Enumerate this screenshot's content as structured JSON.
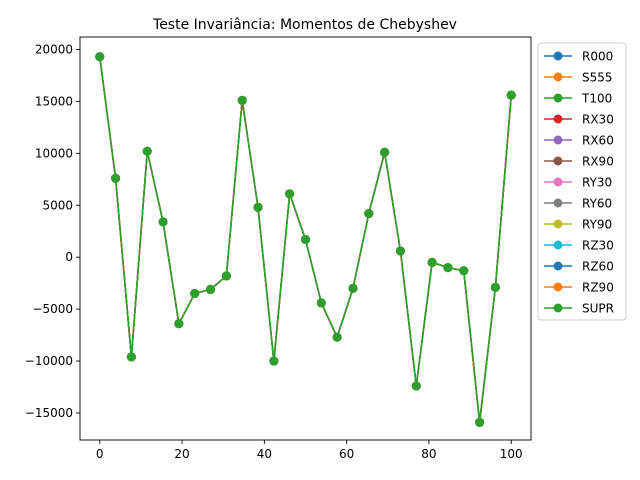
{
  "chart_data": {
    "type": "line",
    "title": "Teste Invariância: Momentos de Chebyshev",
    "xlabel": "",
    "ylabel": "",
    "xlim": [
      -4.8,
      104.8
    ],
    "ylim": [
      -17600,
      21200
    ],
    "xticks": [
      0,
      20,
      40,
      60,
      80,
      100
    ],
    "yticks": [
      -15000,
      -10000,
      -5000,
      0,
      5000,
      10000,
      15000,
      20000
    ],
    "xtick_labels": [
      "0",
      "20",
      "40",
      "60",
      "80",
      "100"
    ],
    "ytick_labels": [
      "−15000",
      "−10000",
      "−5000",
      "0",
      "5000",
      "10000",
      "15000",
      "20000"
    ],
    "grid": false,
    "legend_position": "outside-right",
    "x": [
      0,
      3.85,
      7.69,
      11.54,
      15.38,
      19.23,
      23.08,
      26.92,
      30.77,
      34.62,
      38.46,
      42.31,
      46.15,
      50,
      53.85,
      57.69,
      61.54,
      65.38,
      69.23,
      73.08,
      76.92,
      80.77,
      84.62,
      88.46,
      92.31,
      96.15,
      100
    ],
    "shared_values": [
      19300,
      7600,
      -9600,
      10200,
      3400,
      -6400,
      -3500,
      -3100,
      -1800,
      15100,
      4800,
      -10000,
      6100,
      1700,
      -4400,
      -7700,
      -3000,
      4200,
      10100,
      600,
      -12400,
      -500,
      -1000,
      -1300,
      -15900,
      -2900,
      15600
    ],
    "series": [
      {
        "name": "R000",
        "color": "#1f77b4"
      },
      {
        "name": "S555",
        "color": "#ff7f0e"
      },
      {
        "name": "T100",
        "color": "#2ca02c"
      },
      {
        "name": "RX30",
        "color": "#d62728"
      },
      {
        "name": "RX60",
        "color": "#9467bd"
      },
      {
        "name": "RX90",
        "color": "#8c564b"
      },
      {
        "name": "RY30",
        "color": "#e377c2"
      },
      {
        "name": "RY60",
        "color": "#7f7f7f"
      },
      {
        "name": "RY90",
        "color": "#bcbd22"
      },
      {
        "name": "RZ30",
        "color": "#17becf"
      },
      {
        "name": "RZ60",
        "color": "#1f77b4"
      },
      {
        "name": "RZ90",
        "color": "#ff7f0e"
      },
      {
        "name": "SUPR",
        "color": "#2ca02c"
      }
    ]
  }
}
